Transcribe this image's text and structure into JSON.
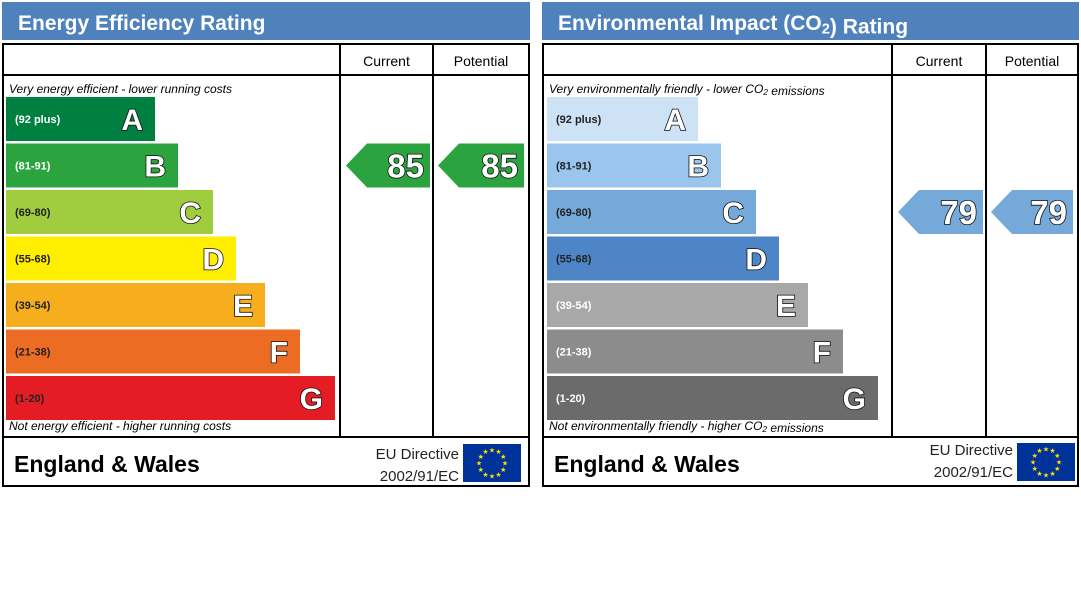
{
  "chart_data": [
    {
      "type": "bar",
      "title": "Energy Efficiency Rating",
      "columns": [
        "Current",
        "Potential"
      ],
      "top_note": "Very energy efficient - lower running costs",
      "bottom_note": "Not energy efficient - higher running costs",
      "bands": [
        {
          "letter": "A",
          "range": "(92 plus)",
          "color": "#008040"
        },
        {
          "letter": "B",
          "range": "(81-91)",
          "color": "#2ba33f"
        },
        {
          "letter": "C",
          "range": "(69-80)",
          "color": "#a0cd3d"
        },
        {
          "letter": "D",
          "range": "(55-68)",
          "color": "#ffee00"
        },
        {
          "letter": "E",
          "range": "(39-54)",
          "color": "#f6ae1d"
        },
        {
          "letter": "F",
          "range": "(21-38)",
          "color": "#ed6c23"
        },
        {
          "letter": "G",
          "range": "(1-20)",
          "color": "#e31d23"
        }
      ],
      "current": {
        "value": 85,
        "band": "B",
        "color": "#2ba33f"
      },
      "potential": {
        "value": 85,
        "band": "B",
        "color": "#2ba33f"
      },
      "footer": {
        "region": "England & Wales",
        "directive_line1": "EU Directive",
        "directive_line2": "2002/91/EC"
      }
    },
    {
      "type": "bar",
      "title": "Environmental Impact (CO2) Rating",
      "columns": [
        "Current",
        "Potential"
      ],
      "top_note": "Very environmentally friendly - lower CO2 emissions",
      "bottom_note": "Not environmentally friendly - higher CO2 emissions",
      "bands": [
        {
          "letter": "A",
          "range": "(92 plus)",
          "color": "#cde3f5"
        },
        {
          "letter": "B",
          "range": "(81-91)",
          "color": "#9ac5ec"
        },
        {
          "letter": "C",
          "range": "(69-80)",
          "color": "#74a9d9"
        },
        {
          "letter": "D",
          "range": "(55-68)",
          "color": "#4e85c7"
        },
        {
          "letter": "E",
          "range": "(39-54)",
          "color": "#a8a8a8"
        },
        {
          "letter": "F",
          "range": "(21-38)",
          "color": "#8c8c8c"
        },
        {
          "letter": "G",
          "range": "(1-20)",
          "color": "#6b6b6b"
        }
      ],
      "current": {
        "value": 79,
        "band": "C",
        "color": "#74a9d9"
      },
      "potential": {
        "value": 79,
        "band": "C",
        "color": "#74a9d9"
      },
      "footer": {
        "region": "England & Wales",
        "directive_line1": "EU Directive",
        "directive_line2": "2002/91/EC"
      }
    }
  ]
}
